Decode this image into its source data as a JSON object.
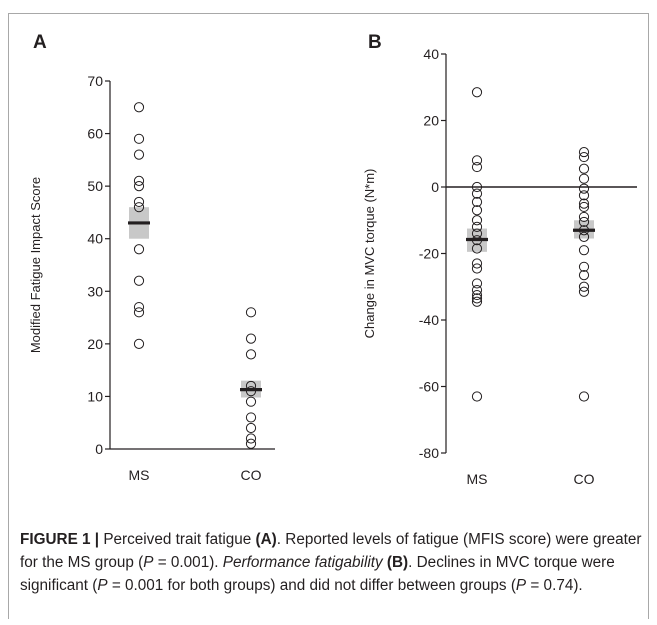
{
  "chart_data": [
    {
      "panel_label": "A",
      "type": "scatter",
      "ylabel": "Modified Fatigue Impact Score",
      "ylim": [
        0,
        70
      ],
      "yticks": [
        0,
        10,
        20,
        30,
        40,
        50,
        60,
        70
      ],
      "categories": [
        "MS",
        "CO"
      ],
      "series": [
        {
          "values": [
            65,
            59,
            56,
            51,
            50,
            47,
            46,
            38,
            32,
            27,
            26,
            20
          ],
          "mean": 43,
          "band": [
            40,
            46
          ]
        },
        {
          "values": [
            26,
            21,
            18,
            12,
            11,
            9,
            6,
            4,
            2,
            1
          ],
          "mean": 11.3,
          "band": [
            9.8,
            13
          ]
        }
      ],
      "zero_line": false
    },
    {
      "panel_label": "B",
      "type": "scatter",
      "ylabel": "Change in MVC torque (N*m)",
      "ylim": [
        -80,
        40
      ],
      "yticks": [
        -80,
        -60,
        -40,
        -20,
        0,
        20,
        40
      ],
      "categories": [
        "MS",
        "CO"
      ],
      "series": [
        {
          "values": [
            28.5,
            8,
            6,
            0,
            -2,
            -4.5,
            -7,
            -10,
            -12,
            -14,
            -16,
            -18.5,
            -23,
            -24.5,
            -29,
            -31,
            -32.5,
            -33.5,
            -34.5,
            -63
          ],
          "mean": -15.8,
          "band": [
            -19.5,
            -12.5
          ]
        },
        {
          "values": [
            10.5,
            9,
            5.5,
            2.5,
            -0.5,
            -2.5,
            -5,
            -6,
            -9,
            -10.5,
            -13,
            -15,
            -19,
            -24,
            -26.5,
            -30,
            -31.5,
            -63
          ],
          "mean": -13,
          "band": [
            -15.5,
            -10
          ]
        }
      ],
      "zero_line": true
    }
  ],
  "caption": {
    "label": "FIGURE 1 |",
    "p1": " Perceived trait fatigue ",
    "b1": "(A)",
    "p2": ". Reported levels of fatigue (MFIS score) were greater for the MS group (",
    "pvar1": "P",
    "p3": " = 0.001). ",
    "i1": "Performance fatigability",
    "p4": " ",
    "b2": "(B)",
    "p5": ". Declines in MVC torque were significant (",
    "pvar2": "P",
    "p6": " = 0.001 for both groups) and did not differ between groups (",
    "pvar3": "P",
    "p7": " = 0.74)."
  },
  "colors": {
    "text": "#231f20",
    "band": "#c8c8c8",
    "mean_bar": "#231f20",
    "marker_stroke": "#231f20",
    "frame": "#a8a8a8"
  }
}
